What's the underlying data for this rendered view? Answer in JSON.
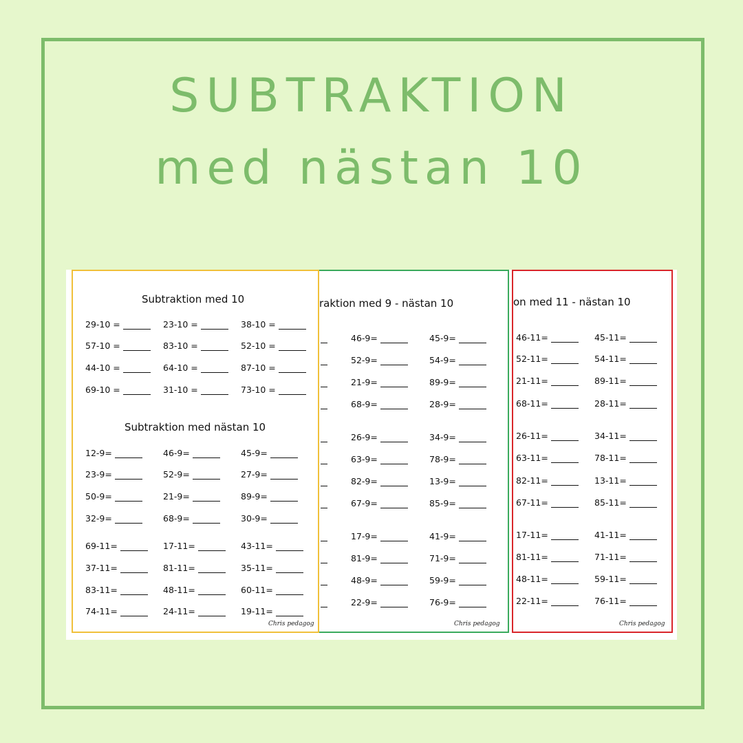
{
  "heading": {
    "line1": "SUBTRAKTION",
    "line2": "med nästan 10"
  },
  "sheets": [
    {
      "id": "yellow",
      "border_color": "#f0c03a",
      "sections": [
        {
          "title": "Subtraktion med 10",
          "columns": [
            [
              "29-10 =",
              "57-10 =",
              "44-10 =",
              "69-10 ="
            ],
            [
              "23-10 =",
              "83-10 =",
              "64-10 =",
              "31-10 ="
            ],
            [
              "38-10 =",
              "52-10 =",
              "87-10 =",
              "73-10 ="
            ]
          ]
        },
        {
          "title": "Subtraktion med nästan 10",
          "columns": [
            [
              "12-9=",
              "23-9=",
              "50-9=",
              "32-9=",
              "69-11=",
              "37-11=",
              "83-11=",
              "74-11="
            ],
            [
              "46-9=",
              "52-9=",
              "21-9=",
              "68-9=",
              "17-11=",
              "81-11=",
              "48-11=",
              "24-11="
            ],
            [
              "45-9=",
              "27-9=",
              "89-9=",
              "30-9=",
              "43-11=",
              "35-11=",
              "60-11=",
              "19-11="
            ]
          ]
        }
      ],
      "signature": "Chris pedagog"
    },
    {
      "id": "green",
      "border_color": "#3aaa5c",
      "title": "raktion med 9 - nästan 10",
      "columns": [
        [
          "46-9=",
          "52-9=",
          "21-9=",
          "68-9=",
          "26-9=",
          "63-9=",
          "82-9=",
          "67-9=",
          "17-9=",
          "81-9=",
          "48-9=",
          "22-9="
        ],
        [
          "45-9=",
          "54-9=",
          "89-9=",
          "28-9=",
          "34-9=",
          "78-9=",
          "13-9=",
          "85-9=",
          "41-9=",
          "71-9=",
          "59-9=",
          "76-9="
        ]
      ],
      "signature": "Chris pedagog"
    },
    {
      "id": "red",
      "border_color": "#d9262a",
      "title": "on med 11 - nästan 10",
      "columns": [
        [
          "46-11=",
          "52-11=",
          "21-11=",
          "68-11=",
          "26-11=",
          "63-11=",
          "82-11=",
          "67-11=",
          "17-11=",
          "81-11=",
          "48-11=",
          "22-11="
        ],
        [
          "45-11=",
          "54-11=",
          "89-11=",
          "28-11=",
          "34-11=",
          "78-11=",
          "13-11=",
          "85-11=",
          "41-11=",
          "71-11=",
          "59-11=",
          "76-11="
        ]
      ],
      "signature": "Chris pedagog"
    }
  ]
}
